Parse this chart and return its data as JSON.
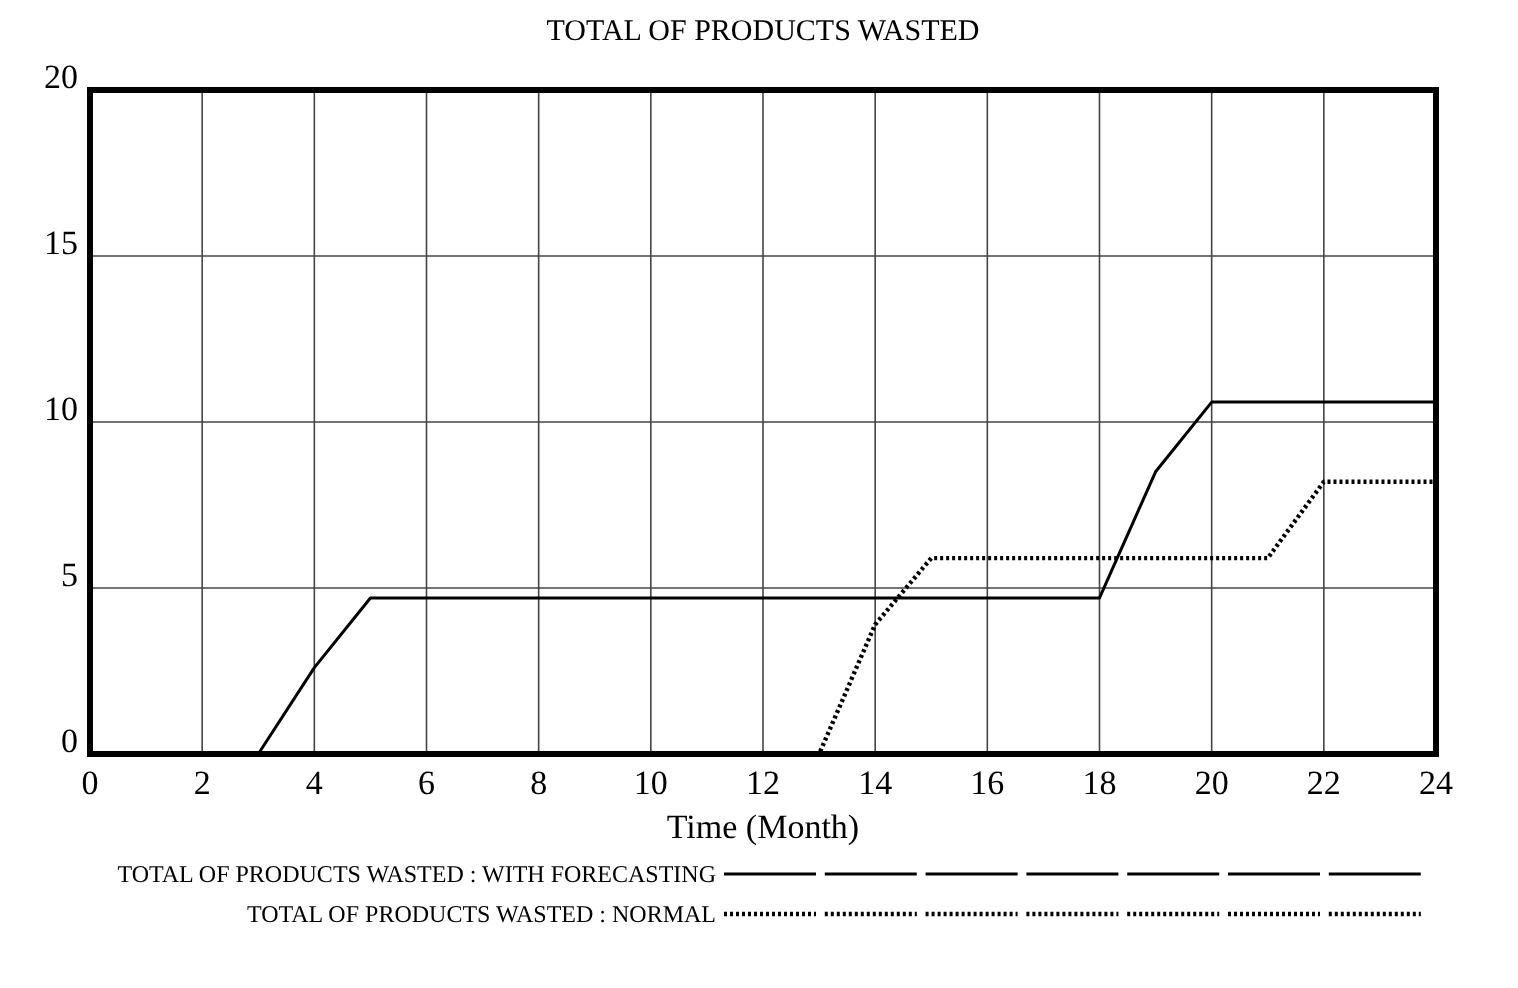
{
  "chart_data": {
    "type": "line",
    "title": "TOTAL OF PRODUCTS  WASTED",
    "xlabel": "Time (Month)",
    "x": [
      0,
      1,
      2,
      3,
      4,
      5,
      6,
      7,
      8,
      9,
      10,
      11,
      12,
      13,
      14,
      15,
      16,
      17,
      18,
      19,
      20,
      21,
      22,
      23,
      24
    ],
    "series": [
      {
        "name": "TOTAL OF PRODUCTS WASTED : WITH FORECASTING",
        "color": "#000000",
        "line_style": "solid",
        "values": [
          0,
          0,
          0,
          0,
          2.6,
          4.7,
          4.7,
          4.7,
          4.7,
          4.7,
          4.7,
          4.7,
          4.7,
          4.7,
          4.7,
          4.7,
          4.7,
          4.7,
          4.7,
          8.5,
          10.6,
          10.6,
          10.6,
          10.6,
          10.6
        ]
      },
      {
        "name": "TOTAL OF PRODUCTS WASTED : NORMAL",
        "color": "#000000",
        "line_style": "dotted",
        "values": [
          0,
          0,
          0,
          0,
          0,
          0,
          0,
          0,
          0,
          0,
          0,
          0,
          0,
          0,
          3.9,
          5.9,
          5.9,
          5.9,
          5.9,
          5.9,
          5.9,
          5.9,
          8.2,
          8.2,
          8.2
        ]
      }
    ],
    "xlim": [
      0,
      24
    ],
    "xticks": [
      0,
      2,
      4,
      6,
      8,
      10,
      12,
      14,
      16,
      18,
      20,
      22,
      24
    ],
    "ylim": [
      0,
      20
    ],
    "yticks": [
      0,
      5,
      10,
      15,
      20
    ],
    "grid": true,
    "legend": "bottom",
    "marker": "none"
  }
}
